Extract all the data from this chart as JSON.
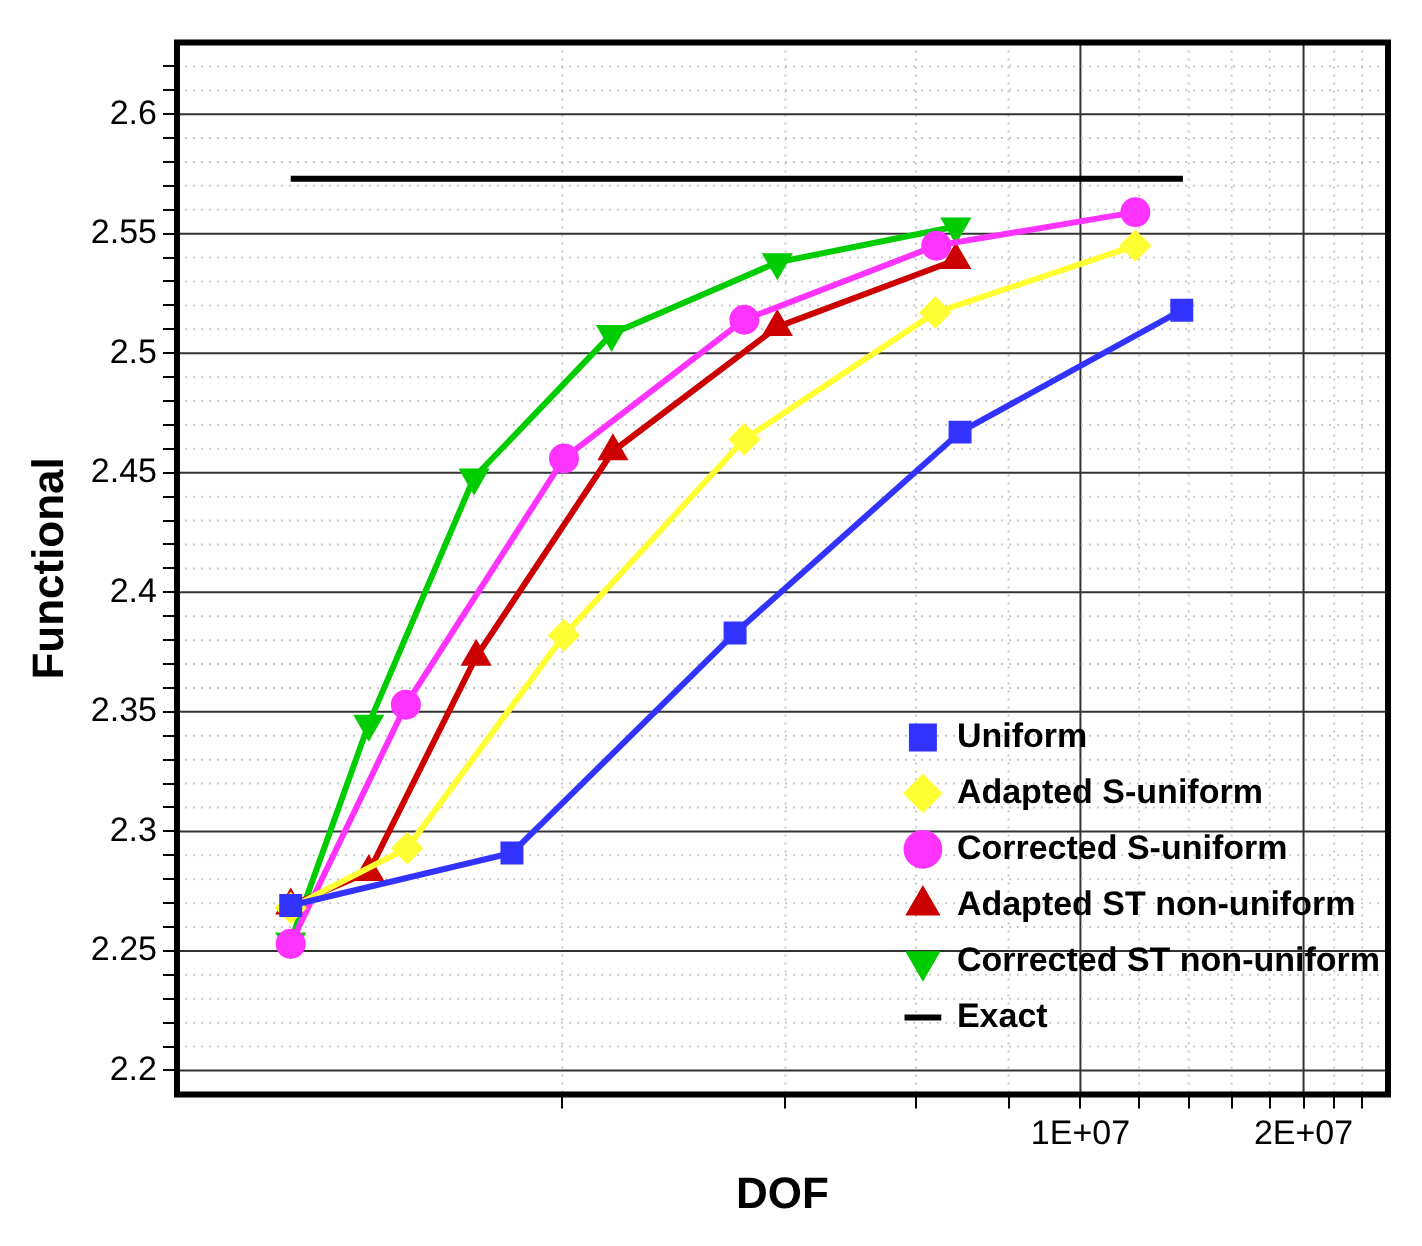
{
  "chart_data": {
    "type": "line",
    "xlabel": "DOF",
    "ylabel": "Functional",
    "log": "x",
    "grid": true,
    "legend": "bottom right",
    "line_style": "solid",
    "xlim": [
      604000,
      26000000
    ],
    "ylim": [
      2.19,
      2.63
    ],
    "xticks": [
      {
        "value": 2000000,
        "label": null
      },
      {
        "value": 4000000,
        "label": null
      },
      {
        "value": 6000000,
        "label": null
      },
      {
        "value": 8000000,
        "label": null
      },
      {
        "value": 10000000,
        "label": "1E+07"
      },
      {
        "value": 12000000,
        "label": null
      },
      {
        "value": 14000000,
        "label": null
      },
      {
        "value": 16000000,
        "label": null
      },
      {
        "value": 18000000,
        "label": null
      },
      {
        "value": 20000000,
        "label": "2E+07"
      },
      {
        "value": 22000000,
        "label": null
      },
      {
        "value": 24000000,
        "label": null
      }
    ],
    "yticks": [
      2.2,
      {
        "value": 2.21,
        "label": null
      },
      {
        "value": 2.22,
        "label": null
      },
      {
        "value": 2.23,
        "label": null
      },
      {
        "value": 2.24,
        "label": null
      },
      2.25,
      {
        "value": 2.26,
        "label": null
      },
      {
        "value": 2.27,
        "label": null
      },
      {
        "value": 2.28,
        "label": null
      },
      {
        "value": 2.29,
        "label": null
      },
      2.3,
      {
        "value": 2.31,
        "label": null
      },
      {
        "value": 2.32,
        "label": null
      },
      {
        "value": 2.33,
        "label": null
      },
      {
        "value": 2.34,
        "label": null
      },
      2.35,
      {
        "value": 2.36,
        "label": null
      },
      {
        "value": 2.37,
        "label": null
      },
      {
        "value": 2.38,
        "label": null
      },
      {
        "value": 2.39,
        "label": null
      },
      2.4,
      {
        "value": 2.41,
        "label": null
      },
      {
        "value": 2.42,
        "label": null
      },
      {
        "value": 2.43,
        "label": null
      },
      {
        "value": 2.44,
        "label": null
      },
      2.45,
      {
        "value": 2.46,
        "label": null
      },
      {
        "value": 2.47,
        "label": null
      },
      {
        "value": 2.48,
        "label": null
      },
      {
        "value": 2.49,
        "label": null
      },
      2.5,
      {
        "value": 2.51,
        "label": null
      },
      {
        "value": 2.52,
        "label": null
      },
      {
        "value": 2.53,
        "label": null
      },
      {
        "value": 2.54,
        "label": null
      },
      2.55,
      {
        "value": 2.56,
        "label": null
      },
      {
        "value": 2.57,
        "label": null
      },
      {
        "value": 2.58,
        "label": null
      },
      {
        "value": 2.59,
        "label": null
      },
      2.6,
      {
        "value": 2.61,
        "label": null
      },
      {
        "value": 2.62,
        "label": null
      }
    ],
    "series": [
      {
        "name": "Uniform",
        "color": "#3333ff",
        "marker": "square",
        "x": [
          860000,
          1710000,
          3420000,
          6880000,
          13700000
        ],
        "values": [
          2.269,
          2.291,
          2.383,
          2.467,
          2.518
        ]
      },
      {
        "name": "Adapted S-uniform",
        "color": "#ffff33",
        "marker": "diamond",
        "x": [
          860000,
          1235000,
          2010000,
          3520000,
          6370000,
          11860000
        ],
        "values": [
          2.268,
          2.293,
          2.382,
          2.464,
          2.517,
          2.545
        ]
      },
      {
        "name": "Corrected S-uniform",
        "color": "#ff33ff",
        "marker": "circle",
        "x": [
          860000,
          1230000,
          2010000,
          3520000,
          6390000,
          11860000
        ],
        "values": [
          2.253,
          2.353,
          2.456,
          2.514,
          2.545,
          2.559
        ]
      },
      {
        "name": "Adapted ST non-uniform",
        "color": "#cc0000",
        "marker": "triangle",
        "x": [
          860000,
          1096000,
          1530000,
          2340000,
          3900000,
          6790000
        ],
        "values": [
          2.269,
          2.283,
          2.373,
          2.459,
          2.511,
          2.539
        ]
      },
      {
        "name": "Corrected ST non-uniform",
        "color": "#00cc00",
        "marker": "triangle_down",
        "x": [
          860000,
          1096000,
          1520000,
          2330000,
          3900000,
          6790000
        ],
        "values": [
          2.254,
          2.345,
          2.448,
          2.508,
          2.538,
          2.553
        ]
      },
      {
        "name": "Exact",
        "color": "#000000",
        "marker": "none",
        "x": [
          860000,
          13750000
        ],
        "values": [
          2.573,
          2.573
        ]
      }
    ]
  }
}
